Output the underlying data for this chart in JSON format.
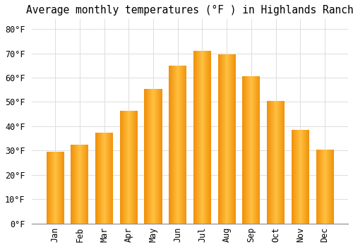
{
  "title": "Average monthly temperatures (°F ) in Highlands Ranch",
  "months": [
    "Jan",
    "Feb",
    "Mar",
    "Apr",
    "May",
    "Jun",
    "Jul",
    "Aug",
    "Sep",
    "Oct",
    "Nov",
    "Dec"
  ],
  "values": [
    29.5,
    32.5,
    37.5,
    46.5,
    55.5,
    65.0,
    71.0,
    69.5,
    60.5,
    50.5,
    38.5,
    30.5
  ],
  "bar_color_center": "#FFB733",
  "bar_color_edge": "#F0900A",
  "background_color": "#FFFFFF",
  "grid_color": "#DDDDDD",
  "ylim": [
    0,
    84
  ],
  "yticks": [
    0,
    10,
    20,
    30,
    40,
    50,
    60,
    70,
    80
  ],
  "title_fontsize": 10.5,
  "tick_fontsize": 8.5,
  "font_family": "monospace"
}
